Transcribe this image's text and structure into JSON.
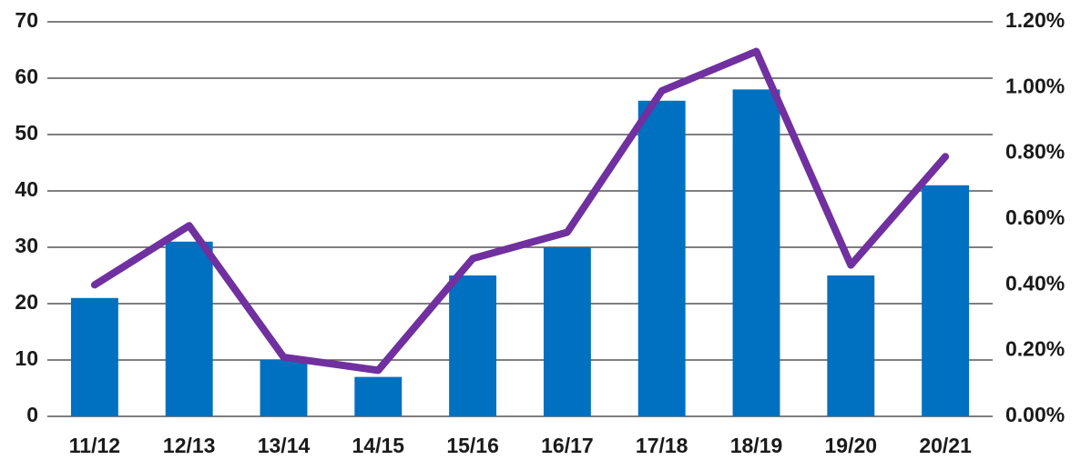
{
  "chart_data": {
    "type": "bar-line",
    "categories": [
      "11/12",
      "12/13",
      "13/14",
      "14/15",
      "15/16",
      "16/17",
      "17/18",
      "18/19",
      "19/20",
      "20/21"
    ],
    "series": [
      {
        "type": "bar",
        "color": "#0070c0",
        "values": [
          21,
          31,
          10,
          7,
          25,
          30,
          56,
          58,
          25,
          41
        ]
      },
      {
        "type": "line",
        "axis": "y2",
        "color": "#7030a0",
        "values": [
          0.4,
          0.58,
          0.18,
          0.14,
          0.48,
          0.56,
          0.99,
          1.11,
          0.46,
          0.79
        ]
      }
    ],
    "ylim": [
      0,
      70
    ],
    "yticks": [
      0,
      10,
      20,
      30,
      40,
      50,
      60,
      70
    ],
    "y2lim": [
      0,
      1.2
    ],
    "y2ticks": [
      {
        "value": 0,
        "label": "0.00%"
      },
      {
        "value": 0.2,
        "label": "0.20%"
      },
      {
        "value": 0.4,
        "label": "0.40%"
      },
      {
        "value": 0.6,
        "label": "0.60%"
      },
      {
        "value": 0.8,
        "label": "0.80%"
      },
      {
        "value": 1.0,
        "label": "1.00%"
      },
      {
        "value": 1.2,
        "label": "1.20%"
      }
    ],
    "grid": true
  }
}
